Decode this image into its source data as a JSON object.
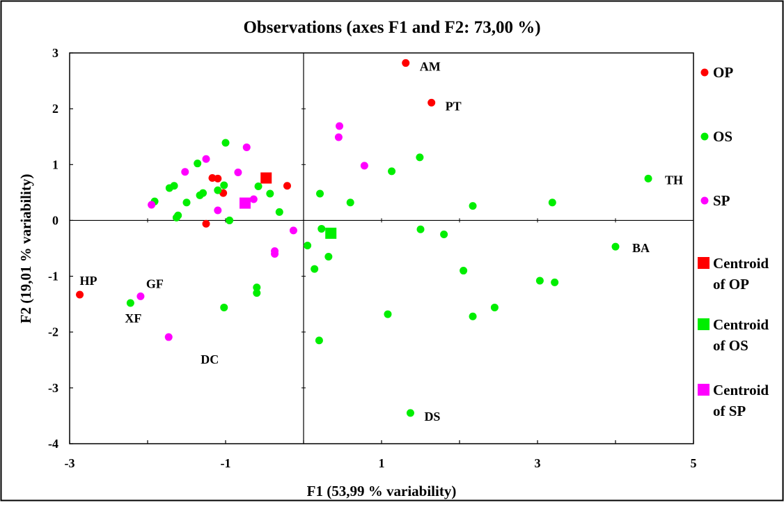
{
  "chart_data": {
    "type": "scatter",
    "title": "Observations (axes F1 and F2: 73,00 %)",
    "xlabel": "F1 (53,99 % variability)",
    "ylabel": "F2 (19,01 % variability)",
    "xlim": [
      -3,
      5
    ],
    "ylim": [
      -4,
      3
    ],
    "xticks": [
      "-3",
      "-1",
      "1",
      "3",
      "5"
    ],
    "yticks": [
      "3",
      "2",
      "1",
      "0",
      "-1",
      "-2",
      "-3",
      "-4"
    ],
    "grid": false,
    "legend_position": "right",
    "series": [
      {
        "name": "OP",
        "color": "#ff0000",
        "marker": "circle",
        "points": [
          {
            "x": 1.31,
            "y": 2.82,
            "label": "AM"
          },
          {
            "x": 1.64,
            "y": 2.11,
            "label": "PT"
          },
          {
            "x": -2.87,
            "y": -1.33,
            "label": "HP"
          },
          {
            "x": -1.17,
            "y": 0.76
          },
          {
            "x": -1.1,
            "y": 0.75
          },
          {
            "x": -1.03,
            "y": 0.49
          },
          {
            "x": -1.25,
            "y": -0.06
          },
          {
            "x": -0.21,
            "y": 0.62
          }
        ]
      },
      {
        "name": "OS",
        "color": "#00ee00",
        "marker": "circle",
        "points": [
          {
            "x": 4.42,
            "y": 0.75,
            "label": "TH"
          },
          {
            "x": 4.0,
            "y": -0.47,
            "label": "BA"
          },
          {
            "x": 1.37,
            "y": -3.45,
            "label": "DS"
          },
          {
            "x": -2.22,
            "y": -1.48,
            "label": "XF"
          },
          {
            "x": -1.91,
            "y": 0.34
          },
          {
            "x": -1.72,
            "y": 0.58
          },
          {
            "x": -1.66,
            "y": 0.62
          },
          {
            "x": -1.63,
            "y": 0.05
          },
          {
            "x": -1.61,
            "y": 0.09
          },
          {
            "x": -1.5,
            "y": 0.32
          },
          {
            "x": -1.36,
            "y": 1.02
          },
          {
            "x": -1.33,
            "y": 0.45
          },
          {
            "x": -1.29,
            "y": 0.49
          },
          {
            "x": -1.1,
            "y": 0.54
          },
          {
            "x": -1.02,
            "y": 0.63
          },
          {
            "x": -1.0,
            "y": 1.39
          },
          {
            "x": -0.95,
            "y": 0.0
          },
          {
            "x": -0.58,
            "y": 0.61
          },
          {
            "x": -0.43,
            "y": 0.48
          },
          {
            "x": -0.31,
            "y": 0.15
          },
          {
            "x": -0.6,
            "y": -1.2
          },
          {
            "x": -0.6,
            "y": -1.3
          },
          {
            "x": -1.02,
            "y": -1.56
          },
          {
            "x": 0.05,
            "y": -0.45
          },
          {
            "x": 0.14,
            "y": -0.87
          },
          {
            "x": 0.21,
            "y": 0.48
          },
          {
            "x": 0.23,
            "y": -0.15
          },
          {
            "x": 0.32,
            "y": -0.65
          },
          {
            "x": 0.6,
            "y": 0.32
          },
          {
            "x": 0.2,
            "y": -2.15
          },
          {
            "x": 1.13,
            "y": 0.88
          },
          {
            "x": 1.08,
            "y": -1.68
          },
          {
            "x": 1.49,
            "y": 1.13
          },
          {
            "x": 1.5,
            "y": -0.16
          },
          {
            "x": 1.8,
            "y": -0.25
          },
          {
            "x": 2.05,
            "y": -0.9
          },
          {
            "x": 2.17,
            "y": 0.26
          },
          {
            "x": 2.17,
            "y": -1.72
          },
          {
            "x": 2.45,
            "y": -1.56
          },
          {
            "x": 3.03,
            "y": -1.08
          },
          {
            "x": 3.22,
            "y": -1.11
          },
          {
            "x": 3.19,
            "y": 0.32
          }
        ]
      },
      {
        "name": "SP",
        "color": "#ff00ff",
        "marker": "circle",
        "points": [
          {
            "x": -2.09,
            "y": -1.36,
            "label": "GF"
          },
          {
            "x": -1.73,
            "y": -2.09,
            "label": "DC"
          },
          {
            "x": -1.95,
            "y": 0.28
          },
          {
            "x": -1.52,
            "y": 0.87
          },
          {
            "x": -1.25,
            "y": 1.1
          },
          {
            "x": -1.1,
            "y": 0.18
          },
          {
            "x": -0.84,
            "y": 0.86
          },
          {
            "x": -0.73,
            "y": 1.31
          },
          {
            "x": -0.64,
            "y": 0.38
          },
          {
            "x": -0.37,
            "y": -0.55
          },
          {
            "x": -0.37,
            "y": -0.6
          },
          {
            "x": -0.13,
            "y": -0.18
          },
          {
            "x": 0.46,
            "y": 1.69
          },
          {
            "x": 0.45,
            "y": 1.49
          },
          {
            "x": 0.78,
            "y": 0.98
          }
        ]
      },
      {
        "name": "Centroid of OP",
        "color": "#ff0000",
        "marker": "square",
        "points": [
          {
            "x": -0.48,
            "y": 0.76
          }
        ]
      },
      {
        "name": "Centroid of OS",
        "color": "#00ee00",
        "marker": "square",
        "points": [
          {
            "x": 0.35,
            "y": -0.23
          }
        ]
      },
      {
        "name": "Centroid of SP",
        "color": "#ff00ff",
        "marker": "square",
        "points": [
          {
            "x": -0.75,
            "y": 0.31
          }
        ]
      }
    ],
    "legend": [
      {
        "lines": [
          "OP"
        ],
        "color": "#ff0000",
        "marker": "circle"
      },
      {
        "lines": [
          "OS"
        ],
        "color": "#00ee00",
        "marker": "circle"
      },
      {
        "lines": [
          "SP"
        ],
        "color": "#ff00ff",
        "marker": "circle"
      },
      {
        "lines": [
          "Centroid",
          "of OP"
        ],
        "color": "#ff0000",
        "marker": "square"
      },
      {
        "lines": [
          "Centroid",
          "of OS"
        ],
        "color": "#00ee00",
        "marker": "square"
      },
      {
        "lines": [
          "Centroid",
          "of SP"
        ],
        "color": "#ff00ff",
        "marker": "square"
      }
    ]
  }
}
